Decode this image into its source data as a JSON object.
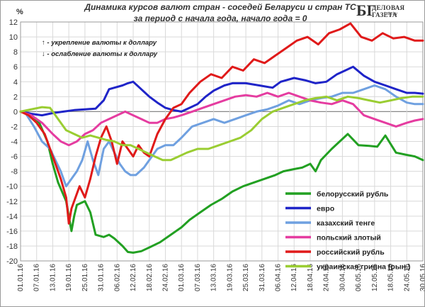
{
  "header": {
    "title_line1": "Динамика курсов валют стран - соседей Беларуси и стран ТС",
    "title_line2": "за период с начала года, начало года = 0"
  },
  "logo": {
    "text": "БГ",
    "name": "ДЕЛОВАЯ ГАЗЕТА",
    "site": "bdg.by"
  },
  "notes": {
    "up": "↑ - укрепление валюты к доллару",
    "down": "↓ - ослабление валюты к доллару"
  },
  "chart_data": {
    "type": "line",
    "y_unit_label": "%",
    "ylim": [
      -20,
      12
    ],
    "ytick_step": 2,
    "xlim": [
      "01.01.16",
      "30.05.16"
    ],
    "x_ticks": [
      "01.01.16",
      "07.01.16",
      "13.01.16",
      "19.01.16",
      "25.01.16",
      "31.01.16",
      "06.02.16",
      "12.02.16",
      "18.02.16",
      "24.02.16",
      "01.03.16",
      "07.03.16",
      "13.03.16",
      "19.03.16",
      "25.03.16",
      "31.03.16",
      "06.04.16",
      "12.04.16",
      "18.04.16",
      "24.04.16",
      "30.04.16",
      "06.05.16",
      "12.05.16",
      "18.05.16",
      "24.05.16",
      "30.05.16"
    ],
    "grid": true,
    "legend_position": "lower-right",
    "series": [
      {
        "name": "белорусский рубль",
        "color": "#22a022",
        "x": [
          "01.01.16",
          "05.01.16",
          "08.01.16",
          "11.01.16",
          "13.01.16",
          "15.01.16",
          "18.01.16",
          "20.01.16",
          "21.01.16",
          "22.01.16",
          "25.01.16",
          "27.01.16",
          "29.01.16",
          "01.02.16",
          "03.02.16",
          "05.02.16",
          "08.02.16",
          "10.02.16",
          "12.02.16",
          "15.02.16",
          "18.02.16",
          "22.02.16",
          "26.02.16",
          "01.03.16",
          "04.03.16",
          "08.03.16",
          "12.03.16",
          "16.03.16",
          "20.03.16",
          "24.03.16",
          "28.03.16",
          "01.04.16",
          "05.04.16",
          "08.04.16",
          "12.04.16",
          "15.04.16",
          "18.04.16",
          "20.04.16",
          "22.04.16",
          "26.04.16",
          "29.04.16",
          "02.05.16",
          "06.05.16",
          "10.05.16",
          "13.05.16",
          "16.05.16",
          "20.05.16",
          "24.05.16",
          "27.05.16",
          "30.05.16"
        ],
        "y": [
          0,
          -0.5,
          -1.5,
          -4.0,
          -7.0,
          -9.5,
          -12.0,
          -16.0,
          -14.0,
          -12.5,
          -12.0,
          -13.5,
          -16.5,
          -16.8,
          -16.5,
          -17.0,
          -18.0,
          -18.8,
          -18.9,
          -18.7,
          -18.2,
          -17.5,
          -16.5,
          -15.5,
          -14.5,
          -13.5,
          -12.5,
          -11.7,
          -10.7,
          -10.0,
          -9.5,
          -9.0,
          -8.5,
          -8.0,
          -7.7,
          -7.5,
          -7.0,
          -8.0,
          -6.5,
          -5.0,
          -4.0,
          -3.0,
          -4.5,
          -4.6,
          -4.7,
          -3.2,
          -5.5,
          -5.8,
          -6.0,
          -6.5
        ]
      },
      {
        "name": "евро",
        "color": "#1f24c8",
        "x": [
          "01.01.16",
          "05.01.16",
          "09.01.16",
          "13.01.16",
          "17.01.16",
          "21.01.16",
          "25.01.16",
          "29.01.16",
          "01.02.16",
          "03.02.16",
          "05.02.16",
          "08.02.16",
          "10.02.16",
          "12.02.16",
          "15.02.16",
          "18.02.16",
          "21.02.16",
          "24.02.16",
          "27.02.16",
          "01.03.16",
          "04.03.16",
          "07.03.16",
          "10.03.16",
          "13.03.16",
          "17.03.16",
          "20.03.16",
          "25.03.16",
          "30.03.16",
          "04.04.16",
          "07.04.16",
          "12.04.16",
          "16.04.16",
          "20.04.16",
          "24.04.16",
          "28.04.16",
          "01.05.16",
          "04.05.16",
          "08.05.16",
          "12.05.16",
          "16.05.16",
          "20.05.16",
          "24.05.16",
          "27.05.16",
          "30.05.16"
        ],
        "y": [
          0,
          -0.3,
          -0.5,
          -0.2,
          0.0,
          0.2,
          0.3,
          0.4,
          1.5,
          3.0,
          3.2,
          3.5,
          3.8,
          4.0,
          3.0,
          2.0,
          1.2,
          0.5,
          0.2,
          0.0,
          0.5,
          1.0,
          2.0,
          2.8,
          3.5,
          3.8,
          3.8,
          3.5,
          3.2,
          4.0,
          4.5,
          4.2,
          3.8,
          4.0,
          5.0,
          5.5,
          6.0,
          4.8,
          4.0,
          3.5,
          3.0,
          2.5,
          2.5,
          2.4
        ]
      },
      {
        "name": "казахский тенге",
        "color": "#6fa0e0",
        "x": [
          "01.01.16",
          "03.01.16",
          "06.01.16",
          "09.01.16",
          "12.01.16",
          "14.01.16",
          "16.01.16",
          "18.01.16",
          "20.01.16",
          "22.01.16",
          "24.01.16",
          "26.01.16",
          "28.01.16",
          "30.01.16",
          "01.02.16",
          "03.02.16",
          "05.02.16",
          "07.02.16",
          "09.02.16",
          "11.02.16",
          "13.02.16",
          "16.02.16",
          "18.02.16",
          "21.02.16",
          "24.02.16",
          "27.02.16",
          "01.03.16",
          "05.03.16",
          "09.03.16",
          "13.03.16",
          "17.03.16",
          "21.03.16",
          "25.03.16",
          "29.03.16",
          "02.04.16",
          "06.04.16",
          "10.04.16",
          "14.04.16",
          "18.04.16",
          "22.04.16",
          "26.04.16",
          "30.04.16",
          "04.05.16",
          "08.05.16",
          "12.05.16",
          "16.05.16",
          "20.05.16",
          "24.05.16",
          "27.05.16",
          "30.05.16"
        ],
        "y": [
          0,
          -0.3,
          -2.0,
          -4.0,
          -5.0,
          -6.5,
          -8.0,
          -10.0,
          -9.0,
          -8.0,
          -6.5,
          -4.0,
          -6.5,
          -8.5,
          -5.0,
          -4.0,
          -5.5,
          -7.0,
          -8.0,
          -8.5,
          -8.5,
          -7.5,
          -6.5,
          -5.0,
          -4.5,
          -4.5,
          -3.5,
          -2.0,
          -1.5,
          -1.0,
          -1.5,
          -1.0,
          -0.5,
          0.0,
          0.3,
          0.8,
          1.5,
          1.0,
          1.5,
          1.8,
          2.0,
          2.5,
          2.5,
          3.0,
          3.5,
          3.0,
          2.0,
          1.2,
          1.0,
          1.0
        ]
      },
      {
        "name": "польский злотый",
        "color": "#e53ca0",
        "x": [
          "01.01.16",
          "05.01.16",
          "09.01.16",
          "13.01.16",
          "16.01.16",
          "19.01.16",
          "22.01.16",
          "25.01.16",
          "28.01.16",
          "31.01.16",
          "03.02.16",
          "06.02.16",
          "09.02.16",
          "12.02.16",
          "15.02.16",
          "18.02.16",
          "21.02.16",
          "24.02.16",
          "27.02.16",
          "01.03.16",
          "05.03.16",
          "09.03.16",
          "13.03.16",
          "17.03.16",
          "21.03.16",
          "25.03.16",
          "29.03.16",
          "02.04.16",
          "06.04.16",
          "10.04.16",
          "14.04.16",
          "18.04.16",
          "22.04.16",
          "26.04.16",
          "30.04.16",
          "04.05.16",
          "08.05.16",
          "12.05.16",
          "16.05.16",
          "20.05.16",
          "24.05.16",
          "27.05.16",
          "30.05.16"
        ],
        "y": [
          0,
          -0.5,
          -1.5,
          -3.0,
          -4.0,
          -4.5,
          -4.0,
          -3.0,
          -2.5,
          -1.5,
          -1.0,
          -0.5,
          0.0,
          -0.5,
          -1.0,
          -1.5,
          -1.5,
          -1.0,
          -0.8,
          -0.5,
          0.0,
          0.5,
          1.0,
          1.5,
          2.0,
          2.2,
          2.0,
          2.5,
          2.0,
          2.5,
          2.0,
          1.5,
          1.2,
          1.0,
          1.5,
          1.0,
          -0.5,
          -1.0,
          -1.5,
          -2.0,
          -1.5,
          -1.2,
          -1.0
        ]
      },
      {
        "name": "российский рубль",
        "color": "#e01a1a",
        "x": [
          "01.01.16",
          "04.01.16",
          "07.01.16",
          "10.01.16",
          "12.01.16",
          "14.01.16",
          "16.01.16",
          "18.01.16",
          "19.01.16",
          "20.01.16",
          "21.01.16",
          "23.01.16",
          "25.01.16",
          "27.01.16",
          "29.01.16",
          "31.01.16",
          "02.02.16",
          "04.02.16",
          "06.02.16",
          "08.02.16",
          "10.02.16",
          "12.02.16",
          "14.02.16",
          "16.02.16",
          "18.02.16",
          "21.02.16",
          "24.02.16",
          "27.02.16",
          "01.03.16",
          "04.03.16",
          "08.03.16",
          "12.03.16",
          "16.03.16",
          "20.03.16",
          "24.03.16",
          "28.03.16",
          "01.04.16",
          "05.04.16",
          "09.04.16",
          "13.04.16",
          "17.04.16",
          "21.04.16",
          "25.04.16",
          "29.04.16",
          "03.05.16",
          "07.05.16",
          "11.05.16",
          "15.05.16",
          "19.05.16",
          "23.05.16",
          "27.05.16",
          "30.05.16"
        ],
        "y": [
          0,
          -0.5,
          -1.5,
          -3.0,
          -5.0,
          -7.0,
          -9.0,
          -11.5,
          -15.0,
          -13.0,
          -12.0,
          -10.0,
          -11.5,
          -9.0,
          -6.0,
          -3.5,
          -2.0,
          -4.0,
          -7.0,
          -4.0,
          -5.0,
          -6.0,
          -4.5,
          -5.5,
          -6.0,
          -3.0,
          -1.0,
          0.5,
          1.0,
          2.5,
          4.0,
          5.0,
          4.5,
          6.0,
          5.5,
          7.0,
          6.5,
          7.5,
          8.5,
          9.5,
          10.0,
          9.0,
          10.5,
          11.0,
          11.8,
          10.0,
          9.5,
          10.5,
          9.8,
          10.0,
          9.5,
          9.5
        ]
      },
      {
        "name": "украинская гривна (рын.)",
        "color": "#9acd32",
        "x": [
          "01.01.16",
          "05.01.16",
          "09.01.16",
          "12.01.16",
          "15.01.16",
          "18.01.16",
          "21.01.16",
          "24.01.16",
          "27.01.16",
          "30.01.16",
          "02.02.16",
          "05.02.16",
          "08.02.16",
          "11.02.16",
          "14.02.16",
          "17.02.16",
          "20.02.16",
          "23.02.16",
          "26.02.16",
          "29.02.16",
          "03.03.16",
          "07.03.16",
          "11.03.16",
          "15.03.16",
          "19.03.16",
          "23.03.16",
          "27.03.16",
          "31.03.16",
          "04.04.16",
          "08.04.16",
          "12.04.16",
          "16.04.16",
          "20.04.16",
          "24.04.16",
          "28.04.16",
          "02.05.16",
          "06.05.16",
          "10.05.16",
          "14.05.16",
          "18.05.16",
          "22.05.16",
          "26.05.16",
          "30.05.16"
        ],
        "y": [
          0,
          0.3,
          0.6,
          0.5,
          -1.0,
          -2.5,
          -3.0,
          -3.5,
          -3.2,
          -3.5,
          -3.8,
          -4.0,
          -4.5,
          -4.5,
          -5.0,
          -5.5,
          -6.0,
          -6.5,
          -6.5,
          -6.0,
          -5.5,
          -5.0,
          -5.0,
          -4.5,
          -4.0,
          -3.5,
          -2.5,
          -1.0,
          0.0,
          0.5,
          1.0,
          1.5,
          1.8,
          2.0,
          1.5,
          2.0,
          1.8,
          1.5,
          1.2,
          1.5,
          1.8,
          2.0,
          2.0
        ]
      }
    ]
  }
}
